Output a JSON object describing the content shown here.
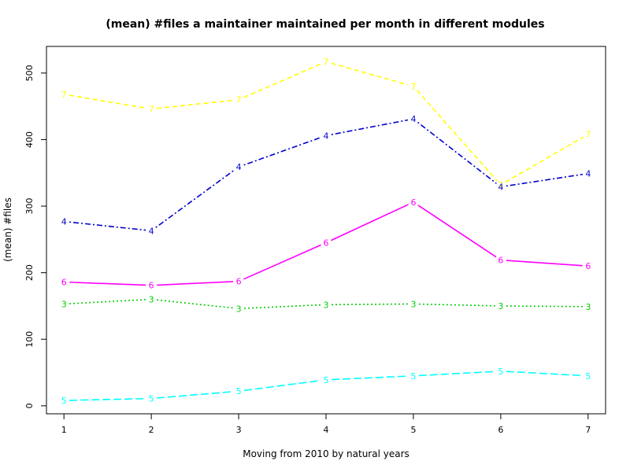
{
  "chart_data": {
    "type": "line",
    "title": "(mean) #files a maintainer maintained per month in different modules",
    "xlabel": "Moving from 2010 by natural years",
    "ylabel": "(mean) #files",
    "x": [
      1,
      2,
      3,
      4,
      5,
      6,
      7
    ],
    "xlim": [
      0.8,
      7.2
    ],
    "ylim": [
      -12,
      540
    ],
    "x_ticks": [
      "1",
      "2",
      "3",
      "4",
      "5",
      "6",
      "7"
    ],
    "y_ticks": [
      0,
      100,
      200,
      300,
      400,
      500
    ],
    "y_tick_labels": [
      "0",
      "100",
      "200",
      "300",
      "400",
      "500"
    ],
    "grid": false,
    "legend": "none",
    "series": [
      {
        "marker": "7",
        "color": "#ffff00",
        "dash": "dashed",
        "values": [
          468,
          446,
          460,
          517,
          480,
          332,
          408
        ]
      },
      {
        "marker": "4",
        "color": "#0000cd",
        "dash": "dotdash",
        "values": [
          277,
          263,
          359,
          406,
          431,
          329,
          349
        ]
      },
      {
        "marker": "6",
        "color": "#ff00ff",
        "dash": "solid",
        "values": [
          186,
          181,
          187,
          245,
          306,
          219,
          210
        ]
      },
      {
        "marker": "3",
        "color": "#00cd00",
        "dash": "dotted",
        "values": [
          153,
          160,
          146,
          152,
          153,
          150,
          149
        ]
      },
      {
        "marker": "5",
        "color": "#00ffff",
        "dash": "longdash",
        "values": [
          8,
          11,
          22,
          39,
          45,
          52,
          45
        ]
      }
    ]
  }
}
